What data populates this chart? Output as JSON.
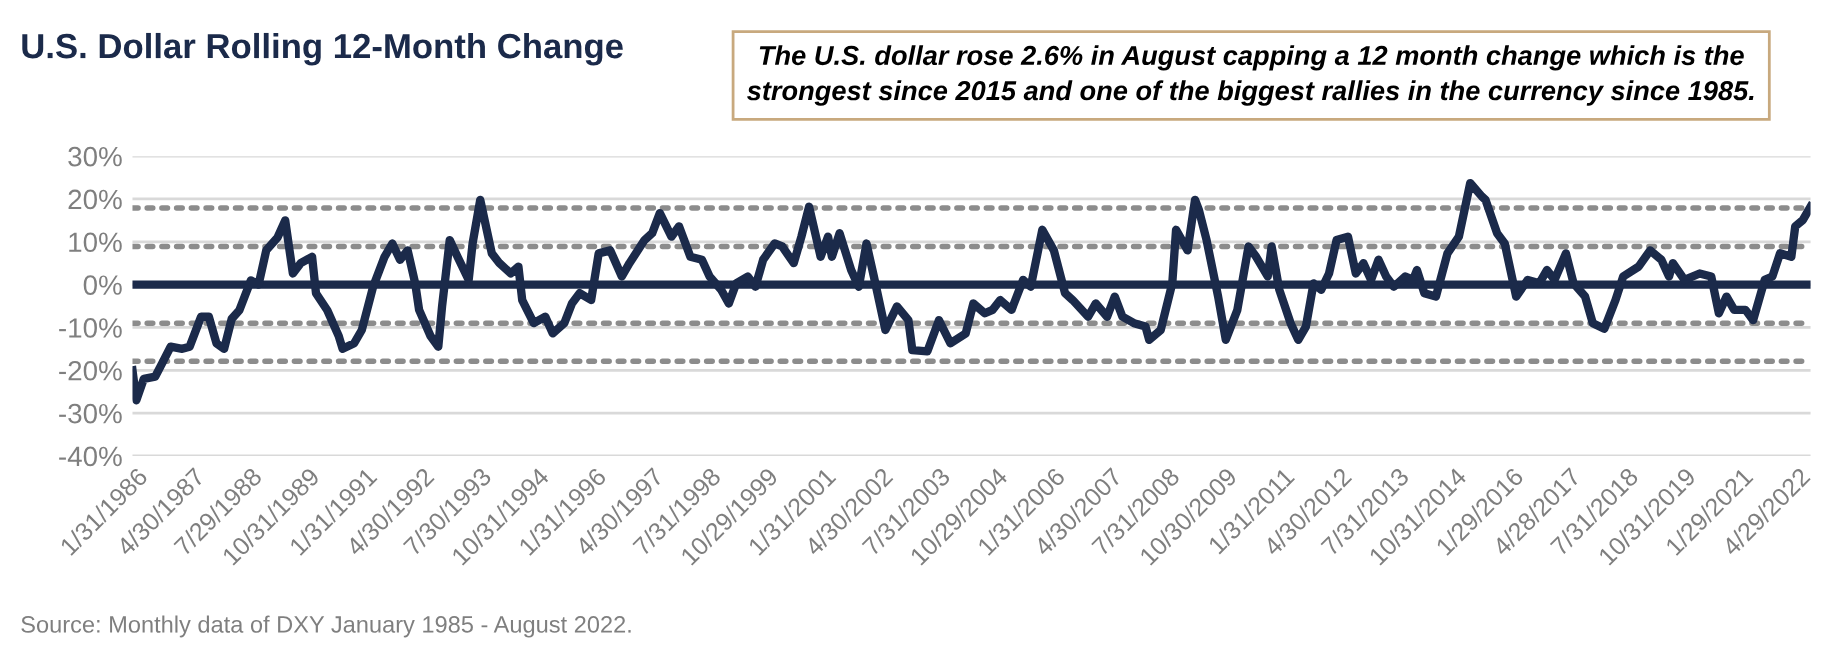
{
  "chart_data": {
    "type": "line",
    "title": "U.S. Dollar Rolling 12-Month Change",
    "annotations": [
      "The U.S. dollar rose 2.6% in August capping a 12 month change which is the\nstrongest since 2015 and one of the biggest rallies in the currency since 1985.",
      "Source: Monthly data of DXY January 1985 - August 2022."
    ],
    "series": [
      {
        "color": "#1b2a4a",
        "x": [
          "1986-01",
          "1986-02",
          "1986-04",
          "1986-07",
          "1986-09",
          "1986-11",
          "1987-02",
          "1987-04",
          "1987-07",
          "1987-09",
          "1987-11",
          "1988-01",
          "1988-03",
          "1988-05",
          "1988-08",
          "1988-10",
          "1988-12",
          "1989-03",
          "1989-05",
          "1989-07",
          "1989-09",
          "1989-12",
          "1990-01",
          "1990-04",
          "1990-07",
          "1990-08",
          "1990-11",
          "1991-01",
          "1991-04",
          "1991-07",
          "1991-09",
          "1991-11",
          "1992-01",
          "1992-03",
          "1992-04",
          "1992-07",
          "1992-09",
          "1992-10",
          "1992-12",
          "1993-02",
          "1993-05",
          "1993-06",
          "1993-08",
          "1993-11",
          "1994-01",
          "1994-04",
          "1994-06",
          "1994-07",
          "1994-10",
          "1995-01",
          "1995-03",
          "1995-06",
          "1995-08",
          "1995-10",
          "1996-01",
          "1996-03",
          "1996-06",
          "1996-09",
          "1996-11",
          "1997-03",
          "1997-05",
          "1997-07",
          "1997-10",
          "1997-12",
          "1998-03",
          "1998-06",
          "1998-08",
          "1998-11",
          "1999-01",
          "1999-03",
          "1999-06",
          "1999-08",
          "1999-10",
          "2000-01",
          "2000-03",
          "2000-06",
          "2000-08",
          "2000-10",
          "2001-01",
          "2001-03",
          "2001-04",
          "2001-06",
          "2001-09",
          "2001-11",
          "2002-01",
          "2002-03",
          "2002-06",
          "2002-09",
          "2002-12",
          "2003-01",
          "2003-05",
          "2003-08",
          "2003-11",
          "2004-03",
          "2004-05",
          "2004-08",
          "2004-10",
          "2004-12",
          "2005-03",
          "2005-06",
          "2005-08",
          "2005-11",
          "2006-02",
          "2006-05",
          "2006-07",
          "2006-11",
          "2007-01",
          "2007-04",
          "2007-06",
          "2007-08",
          "2007-11",
          "2008-02",
          "2008-03",
          "2008-06",
          "2008-09",
          "2008-10",
          "2009-01",
          "2009-03",
          "2009-04",
          "2009-06",
          "2009-09",
          "2009-11",
          "2010-02",
          "2010-05",
          "2010-07",
          "2010-10",
          "2010-11",
          "2011-01",
          "2011-04",
          "2011-06",
          "2011-08",
          "2011-10",
          "2011-12",
          "2012-02",
          "2012-04",
          "2012-07",
          "2012-09",
          "2012-11",
          "2013-01",
          "2013-03",
          "2013-05",
          "2013-07",
          "2013-10",
          "2013-12",
          "2014-01",
          "2014-03",
          "2014-06",
          "2014-09",
          "2014-12",
          "2015-03",
          "2015-06",
          "2015-07",
          "2015-10",
          "2015-12",
          "2016-03",
          "2016-06",
          "2016-09",
          "2016-11",
          "2017-01",
          "2017-04",
          "2017-06",
          "2017-09",
          "2017-11",
          "2018-02",
          "2018-05",
          "2018-07",
          "2018-11",
          "2019-02",
          "2019-05",
          "2019-07",
          "2019-08",
          "2019-11",
          "2020-03",
          "2020-06",
          "2020-08",
          "2020-10",
          "2020-12",
          "2021-03",
          "2021-05",
          "2021-08",
          "2021-10",
          "2021-12",
          "2022-03",
          "2022-04",
          "2022-06",
          "2022-08"
        ],
        "values": [
          -20,
          -27,
          -22,
          -21.5,
          -18,
          -14.5,
          -15,
          -14.5,
          -7.5,
          -7.5,
          -13.7,
          -15,
          -8,
          -6,
          1,
          0,
          8,
          11,
          15,
          2.6,
          5,
          6.5,
          -2,
          -6,
          -12,
          -15,
          -13.7,
          -10.6,
          -0.5,
          6.5,
          9.6,
          5.8,
          8,
          0.3,
          -5.9,
          -12,
          -14.5,
          -5.1,
          10.4,
          6.5,
          1.1,
          9.6,
          19.8,
          7.3,
          5,
          2.6,
          4.2,
          -3.6,
          -9,
          -7.5,
          -11.4,
          -9,
          -4.4,
          -2,
          -3.6,
          7.3,
          8,
          1.9,
          5,
          10.4,
          12,
          16.7,
          11.2,
          13.6,
          6.5,
          5.8,
          1.9,
          -1.2,
          -4.4,
          0.3,
          1.9,
          -0.5,
          5.8,
          9.6,
          8.9,
          5,
          11.2,
          18.2,
          6.5,
          11.2,
          6.5,
          12,
          3.4,
          -0.5,
          9.6,
          1.9,
          -10.6,
          -5.1,
          -8.3,
          -15.3,
          -15.6,
          -8.3,
          -13.7,
          -11.4,
          -4.4,
          -6.7,
          -5.9,
          -3.6,
          -5.9,
          1.1,
          -0.5,
          12.8,
          8,
          -2,
          -3.6,
          -7.5,
          -4.4,
          -7.5,
          -2.8,
          -7.5,
          -9,
          -9.8,
          -12.9,
          -10.6,
          0.3,
          12.8,
          8,
          19.8,
          17.4,
          10.4,
          -2.8,
          -12.9,
          -5.9,
          8.9,
          6.5,
          1.9,
          8.9,
          -1.2,
          -9,
          -12.9,
          -9.8,
          0.3,
          -1.2,
          2.6,
          10.4,
          11.2,
          2.6,
          5,
          1.1,
          5.8,
          1.9,
          -0.5,
          1.9,
          1.1,
          3.4,
          -2,
          -2.8,
          7.3,
          11.2,
          23.7,
          20.6,
          19.8,
          12,
          9.6,
          -2.8,
          1.1,
          0.3,
          3.4,
          1.1,
          7.3,
          0.3,
          -2.8,
          -9,
          -10.3,
          -3.6,
          1.9,
          4.2,
          8,
          5.8,
          1.9,
          5,
          1.1,
          2.6,
          1.9,
          -6.7,
          -2.8,
          -5.9,
          -5.9,
          -8.3,
          1.1,
          1.9,
          7.3,
          6.5,
          13.6,
          15.1,
          18.2
        ]
      }
    ],
    "xlim": [
      "1986-01",
      "2022-08"
    ],
    "xticks": [
      {
        "value": "1986-01-31",
        "label": "1/31/1986"
      },
      {
        "value": "1987-04-30",
        "label": "4/30/1987"
      },
      {
        "value": "1988-07-29",
        "label": "7/29/1988"
      },
      {
        "value": "1989-10-31",
        "label": "10/31/1989"
      },
      {
        "value": "1991-01-31",
        "label": "1/31/1991"
      },
      {
        "value": "1992-04-30",
        "label": "4/30/1992"
      },
      {
        "value": "1993-07-30",
        "label": "7/30/1993"
      },
      {
        "value": "1994-10-31",
        "label": "10/31/1994"
      },
      {
        "value": "1996-01-31",
        "label": "1/31/1996"
      },
      {
        "value": "1997-04-30",
        "label": "4/30/1997"
      },
      {
        "value": "1998-07-31",
        "label": "7/31/1998"
      },
      {
        "value": "1999-10-29",
        "label": "10/29/1999"
      },
      {
        "value": "2001-01-31",
        "label": "1/31/2001"
      },
      {
        "value": "2002-04-30",
        "label": "4/30/2002"
      },
      {
        "value": "2003-07-31",
        "label": "7/31/2003"
      },
      {
        "value": "2004-10-29",
        "label": "10/29/2004"
      },
      {
        "value": "2006-01-31",
        "label": "1/31/2006"
      },
      {
        "value": "2007-04-30",
        "label": "4/30/2007"
      },
      {
        "value": "2008-07-31",
        "label": "7/31/2008"
      },
      {
        "value": "2009-10-30",
        "label": "10/30/2009"
      },
      {
        "value": "2011-01-31",
        "label": "1/31/2011"
      },
      {
        "value": "2012-04-30",
        "label": "4/30/2012"
      },
      {
        "value": "2013-07-31",
        "label": "7/31/2013"
      },
      {
        "value": "2014-10-31",
        "label": "10/31/2014"
      },
      {
        "value": "2016-01-29",
        "label": "1/29/2016"
      },
      {
        "value": "2017-04-28",
        "label": "4/28/2017"
      },
      {
        "value": "2018-07-31",
        "label": "7/31/2018"
      },
      {
        "value": "2019-10-31",
        "label": "10/31/2019"
      },
      {
        "value": "2021-01-29",
        "label": "1/29/2021"
      },
      {
        "value": "2022-04-29",
        "label": "4/29/2022"
      }
    ],
    "ylim": [
      -40,
      30
    ],
    "yticks": [
      {
        "value": -40,
        "label": "-40%"
      },
      {
        "value": -30,
        "label": "-30%"
      },
      {
        "value": -20,
        "label": "-20%"
      },
      {
        "value": -10,
        "label": "-10%"
      },
      {
        "value": 0,
        "label": "0%"
      },
      {
        "value": 10,
        "label": "10%"
      },
      {
        "value": 20,
        "label": "20%"
      },
      {
        "value": 30,
        "label": "30%"
      }
    ],
    "grid": "y",
    "legend": false,
    "ref_lines": [
      {
        "axis": "y",
        "value": 0,
        "color": "#1b2a4a",
        "line_style": "solid"
      },
      {
        "axis": "y",
        "value": 17.9,
        "color": "#8c8c8c",
        "line_style": "dotted"
      },
      {
        "axis": "y",
        "value": 8.9,
        "color": "#8c8c8c",
        "line_style": "dotted"
      },
      {
        "axis": "y",
        "value": -9,
        "color": "#8c8c8c",
        "line_style": "dotted"
      },
      {
        "axis": "y",
        "value": -17.9,
        "color": "#8c8c8c",
        "line_style": "dotted"
      }
    ]
  }
}
